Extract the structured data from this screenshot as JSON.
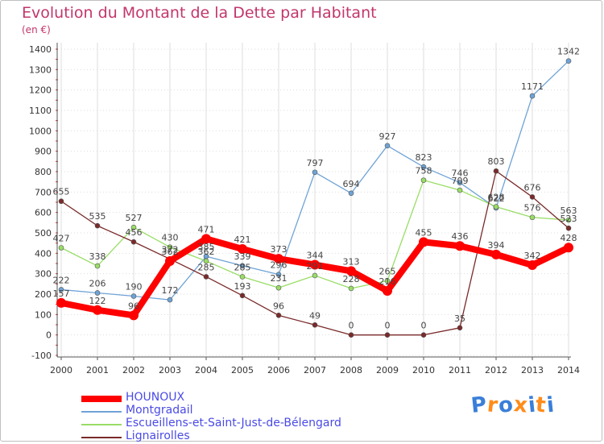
{
  "header": {
    "title": "Evolution du Montant de la Dette par Habitant",
    "subtitle": "(en €)"
  },
  "colors": {
    "title": "#c2366b",
    "axis": "#555555",
    "grid": "#dddddd",
    "legend_text": "#4a4ae6"
  },
  "chart_data": {
    "type": "line",
    "title": "Evolution du Montant de la Dette par Habitant",
    "subtitle": "(en €)",
    "xlabel": "",
    "ylabel": "",
    "x": [
      "2000",
      "2001",
      "2002",
      "2003",
      "2004",
      "2005",
      "2006",
      "2007",
      "2008",
      "2009",
      "2010",
      "2011",
      "2012",
      "2013",
      "2014"
    ],
    "ylim": [
      -100,
      1400
    ],
    "yticks": [
      "-100",
      "0",
      "100",
      "200",
      "300",
      "400",
      "500",
      "600",
      "700",
      "800",
      "900",
      "1000",
      "1100",
      "1200",
      "1300",
      "1400"
    ],
    "grid": true,
    "legend_position": "bottom-left",
    "series": [
      {
        "name": "HOUNOUX",
        "color": "#ff0000",
        "values": [
          157,
          122,
          96,
          362,
          471,
          421,
          373,
          344,
          313,
          216,
          455,
          436,
          394,
          342,
          428
        ],
        "labels": [
          "157",
          "122",
          "96",
          "362",
          "471",
          "421",
          "373",
          "344",
          "313",
          "216",
          "455",
          "436",
          "394",
          "342",
          "428"
        ]
      },
      {
        "name": "Montgradail",
        "color": "#6fa3d6",
        "values": [
          222,
          206,
          190,
          172,
          385,
          339,
          296,
          797,
          694,
          927,
          823,
          746,
          622,
          1171,
          1342
        ],
        "labels": [
          "222",
          "206",
          "190",
          "172",
          "385",
          "339",
          "296",
          "797",
          "694",
          "927",
          "823",
          "746",
          "622",
          "1171",
          "1342"
        ]
      },
      {
        "name": "Escueillens-et-Saint-Just-de-Bélengard",
        "color": "#99dd66",
        "values": [
          427,
          338,
          527,
          430,
          362,
          285,
          231,
          291,
          228,
          265,
          758,
          709,
          628,
          576,
          563
        ],
        "labels": [
          "427",
          "338",
          "527",
          "430",
          "362",
          "285",
          "231",
          "291",
          "228",
          "265",
          "758",
          "709",
          "628",
          "576",
          "563"
        ]
      },
      {
        "name": "Lignairolles",
        "color": "#7a2a2a",
        "values": [
          655,
          535,
          456,
          372,
          285,
          193,
          96,
          49,
          0,
          0,
          0,
          35,
          803,
          676,
          523
        ],
        "labels": [
          "655",
          "535",
          "456",
          "372",
          "285",
          "193",
          "96",
          "49",
          "0",
          "0",
          "0",
          "35",
          "803",
          "676",
          "523"
        ]
      }
    ]
  },
  "legend": [
    {
      "label": "HOUNOUX",
      "color": "#ff0000"
    },
    {
      "label": "Montgradail",
      "color": "#6fa3d6"
    },
    {
      "label": "Escueillens-et-Saint-Just-de-Bélengard",
      "color": "#99dd66"
    },
    {
      "label": "Lignairolles",
      "color": "#7a2a2a"
    }
  ],
  "logo": {
    "text": "Proxiti",
    "letters": [
      "P",
      "r",
      "o",
      "x",
      "i",
      "t",
      "i"
    ],
    "letter_colors": [
      "#3a7fd9",
      "#ff8c1a",
      "#3a7fd9",
      "#ff8c1a",
      "#3a7fd9",
      "#ff8c1a",
      "#3a7fd9"
    ]
  }
}
